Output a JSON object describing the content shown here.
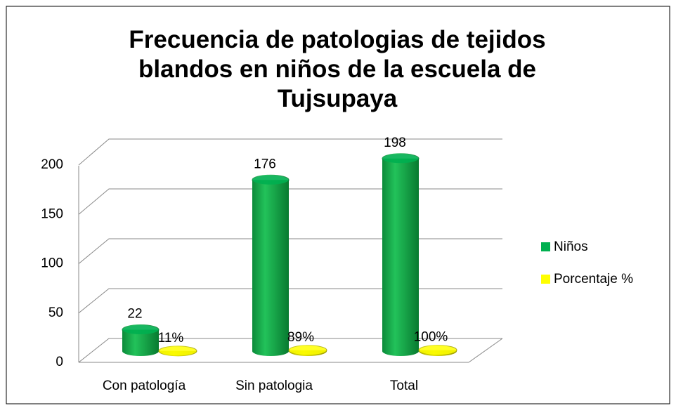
{
  "chart_data": {
    "type": "bar3d",
    "title": "Frecuencia  de patologias de tejidos blandos en niños de la escuela de Tujsupaya",
    "categories": [
      "Con patología",
      "Sin patologia",
      "Total"
    ],
    "series": [
      {
        "name": "Niños",
        "color": "#00b050",
        "values": [
          22,
          176,
          198
        ]
      },
      {
        "name": "Porcentaje %",
        "color": "#ffff00",
        "values": [
          0.11,
          0.89,
          1
        ],
        "value_labels": [
          "11%",
          "89%",
          "100%"
        ]
      }
    ],
    "ylim": [
      0,
      200
    ],
    "yticks": [
      0,
      50,
      100,
      150,
      200
    ],
    "grid": true,
    "legend": "right"
  }
}
